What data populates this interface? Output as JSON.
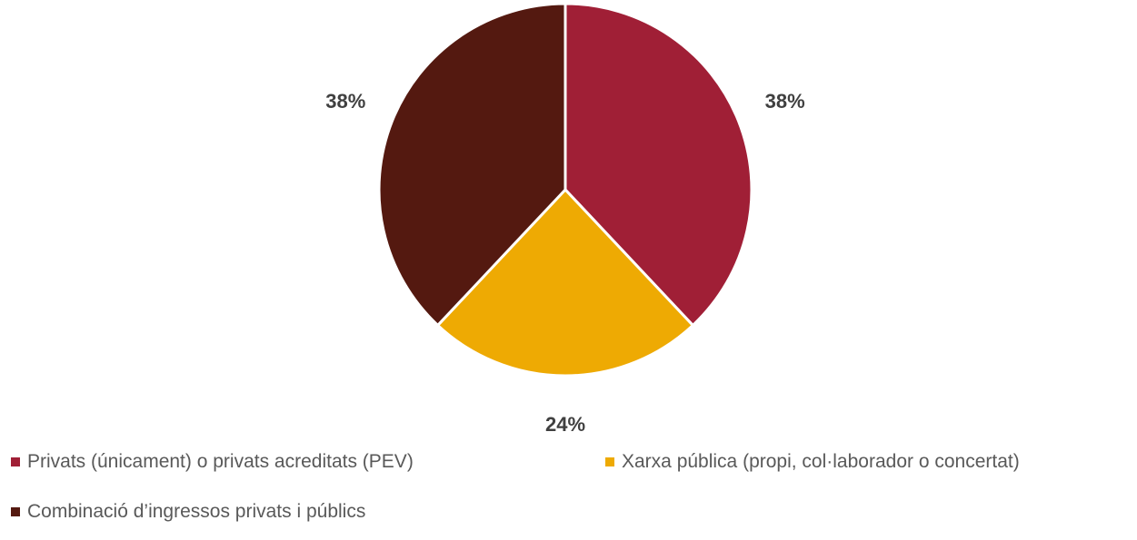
{
  "chart_data": {
    "type": "pie",
    "title": "",
    "slices": [
      {
        "label": "Privats (únicament) o privats acreditats (PEV)",
        "value": 38,
        "value_label": "38%",
        "color": "#a01f36"
      },
      {
        "label": "Xarxa pública (propi, col·laborador o concertat)",
        "value": 24,
        "value_label": "24%",
        "color": "#eeaa03"
      },
      {
        "label": "Combinació d’ingressos privats i públics",
        "value": 38,
        "value_label": "38%",
        "color": "#541910"
      }
    ],
    "legend_position": "bottom"
  }
}
